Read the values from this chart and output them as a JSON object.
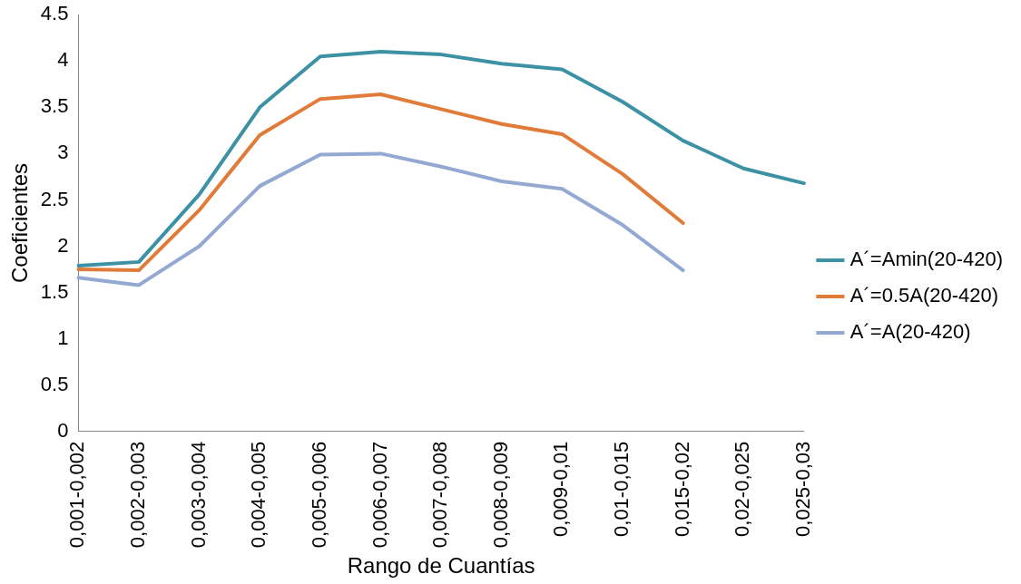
{
  "chart_data": {
    "type": "line",
    "xlabel": "Rango de Cuantías",
    "ylabel": "Coeficientes",
    "categories": [
      "0,001-0,002",
      "0,002-0,003",
      "0,003-0,004",
      "0,004-0,005",
      "0,005-0,006",
      "0,006-0,007",
      "0,007-0,008",
      "0,008-0,009",
      "0,009-0,01",
      "0,01-0,015",
      "0,015-0,02",
      "0,02-0,025",
      "0,025-0,03"
    ],
    "series": [
      {
        "name": "A´=Amin(20-420)",
        "color": "#3c91a5",
        "values": [
          1.79,
          1.83,
          2.56,
          3.5,
          4.05,
          4.1,
          4.07,
          3.97,
          3.91,
          3.56,
          3.14,
          2.84,
          2.68
        ]
      },
      {
        "name": "A´=0.5A(20-420)",
        "color": "#e07b39",
        "values": [
          1.75,
          1.74,
          2.39,
          3.2,
          3.59,
          3.64,
          3.48,
          3.32,
          3.21,
          2.78,
          2.25,
          null,
          null
        ]
      },
      {
        "name": "A´=A(20-420)",
        "color": "#93a9d1",
        "values": [
          1.66,
          1.58,
          2.0,
          2.65,
          2.99,
          3.0,
          2.86,
          2.7,
          2.62,
          2.23,
          1.74,
          null,
          null
        ]
      }
    ],
    "ylim": [
      0,
      4.5
    ],
    "yticks": [
      0,
      0.5,
      1,
      1.5,
      2,
      2.5,
      3,
      3.5,
      4,
      4.5
    ],
    "grid": false,
    "legend": "right",
    "marker": "none",
    "line_style": "solid"
  }
}
